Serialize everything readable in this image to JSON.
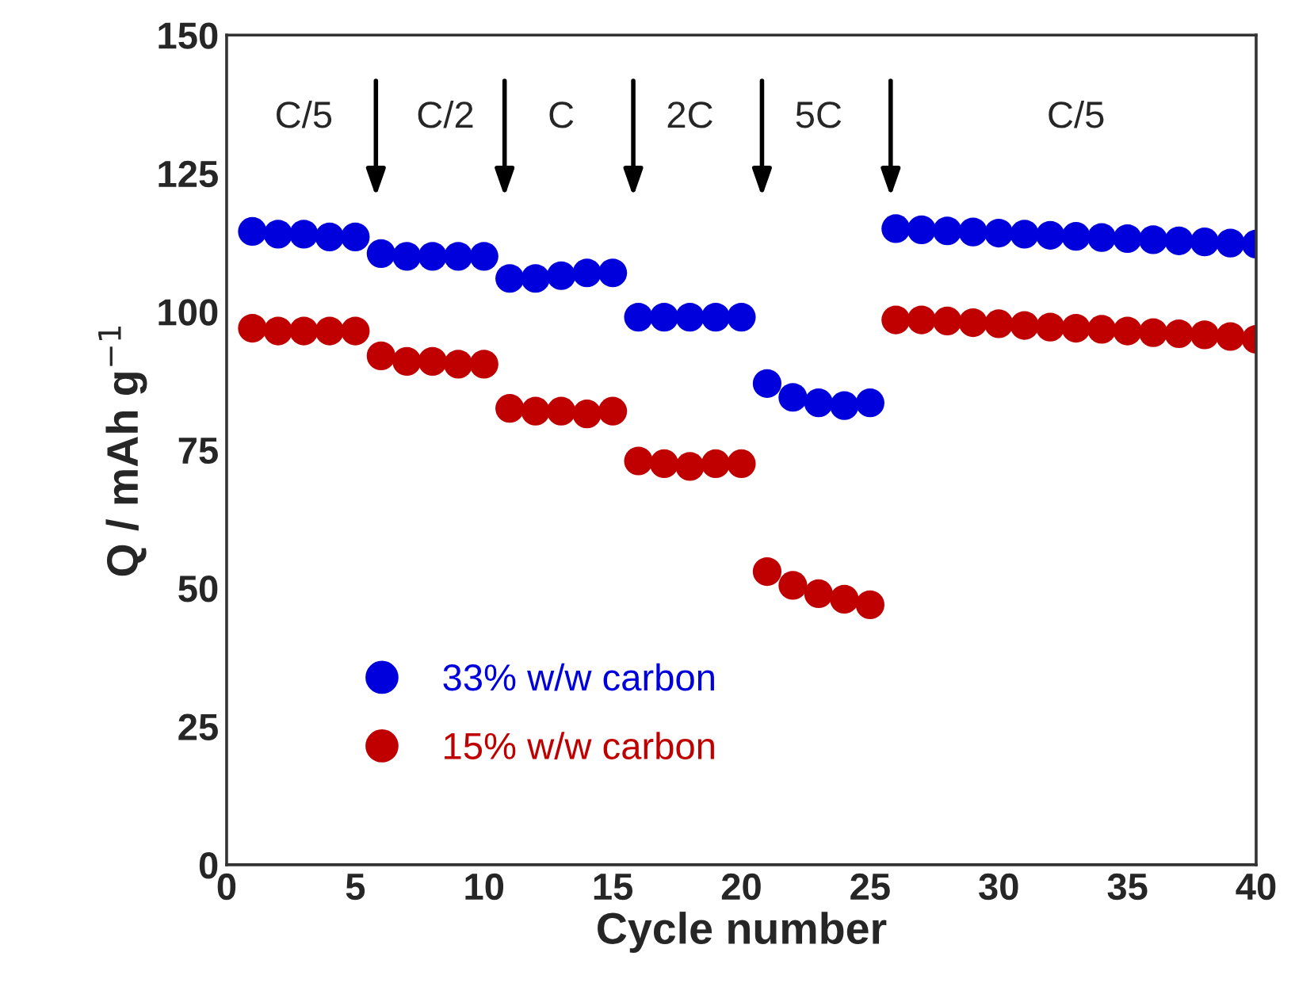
{
  "chart_data": {
    "type": "scatter",
    "xlabel": "Cycle number",
    "ylabel": "Q / mAh g$^{−1}$",
    "x": [
      1,
      2,
      3,
      4,
      5,
      6,
      7,
      8,
      9,
      10,
      11,
      12,
      13,
      14,
      15,
      16,
      17,
      18,
      19,
      20,
      21,
      22,
      23,
      24,
      25,
      26,
      27,
      28,
      29,
      30,
      31,
      32,
      33,
      34,
      35,
      36,
      37,
      38,
      39,
      40
    ],
    "series": [
      {
        "name": "33% w/w carbon",
        "color": "#0000dd",
        "values": [
          114.5,
          114,
          114,
          113.5,
          113.5,
          110.5,
          110,
          110,
          110,
          110,
          106,
          106,
          106.5,
          107,
          107,
          99,
          99,
          99,
          99,
          99,
          87,
          84.5,
          83.5,
          83,
          83.5,
          115,
          114.8,
          114.6,
          114.4,
          114.2,
          114,
          113.8,
          113.6,
          113.4,
          113.2,
          113,
          112.8,
          112.6,
          112.4,
          112.2
        ]
      },
      {
        "name": "15% w/w carbon",
        "color": "#c00000",
        "values": [
          97,
          96.5,
          96.5,
          96.5,
          96.5,
          92,
          91,
          91,
          90.5,
          90.5,
          82.5,
          82,
          82,
          81.5,
          82,
          73,
          72.5,
          72,
          72.5,
          72.5,
          53,
          50.5,
          49,
          48,
          47,
          98.5,
          98.5,
          98.3,
          98,
          97.8,
          97.5,
          97.2,
          97,
          96.8,
          96.5,
          96.2,
          96,
          95.8,
          95.5,
          95
        ]
      }
    ],
    "annotations": [
      "C/5",
      "C/2",
      "C",
      "2C",
      "5C",
      "C/5"
    ],
    "xlim": [
      0,
      40
    ],
    "xticks": [
      0,
      5,
      10,
      15,
      20,
      25,
      30,
      35,
      40
    ],
    "ylim": [
      0,
      150
    ],
    "yticks": [
      0,
      25,
      50,
      75,
      100,
      125,
      150
    ],
    "marker": "circle",
    "legend": "bottom left",
    "grid": false
  }
}
